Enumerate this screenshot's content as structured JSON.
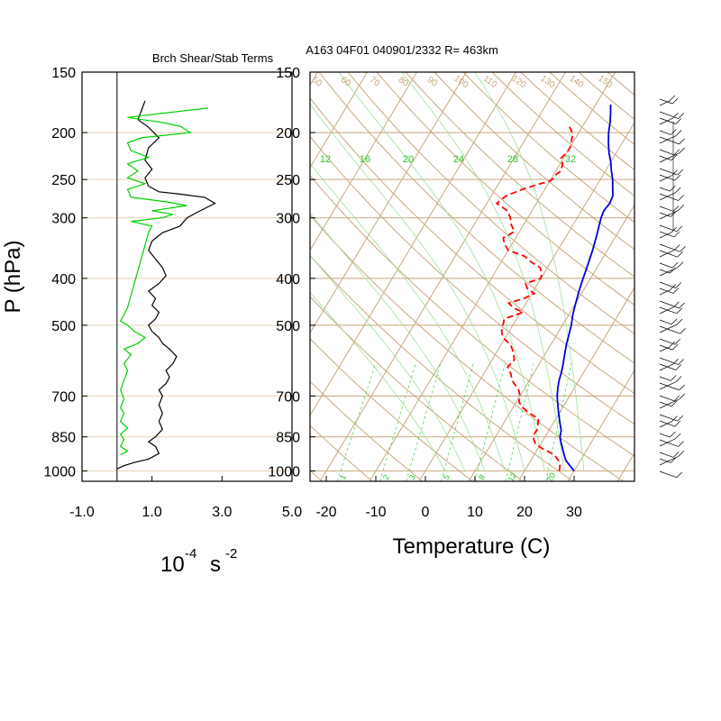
{
  "figure": {
    "left_title": "Brch Shear/Stab Terms",
    "right_title": "A163 04F01 040901/2332 R= 463km",
    "pressure_axis_label": "P (hPa)",
    "left_xlabel_base": "10",
    "left_xlabel_exp": "-4",
    "left_xlabel_unit": "s",
    "left_xlabel_unit_exp": "-2",
    "right_xlabel": "Temperature (C)"
  },
  "chart_data": [
    {
      "type": "line",
      "panel": "left",
      "title": "Brch Shear/Stab Terms",
      "xlabel": "10^-4 s^-2",
      "ylabel": "P (hPa)",
      "xlim": [
        -1.0,
        5.0
      ],
      "ylim": [
        1050,
        150
      ],
      "y_scale": "log",
      "x_ticks": [
        "-1.0",
        "1.0",
        "3.0",
        "5.0"
      ],
      "x_tick_values": [
        -1.0,
        1.0,
        3.0,
        5.0
      ],
      "y_ticks": [
        150,
        200,
        250,
        300,
        400,
        500,
        700,
        850,
        1000
      ],
      "series": [
        {
          "color": "#000000",
          "points": [
            [
              0.0,
              990
            ],
            [
              0.2,
              975
            ],
            [
              0.5,
              960
            ],
            [
              0.9,
              945
            ],
            [
              1.2,
              920
            ],
            [
              1.1,
              890
            ],
            [
              0.9,
              870
            ],
            [
              1.1,
              850
            ],
            [
              1.3,
              820
            ],
            [
              1.2,
              790
            ],
            [
              1.3,
              760
            ],
            [
              1.2,
              730
            ],
            [
              1.3,
              700
            ],
            [
              1.2,
              680
            ],
            [
              1.4,
              660
            ],
            [
              1.5,
              640
            ],
            [
              1.4,
              620
            ],
            [
              1.6,
              600
            ],
            [
              1.7,
              580
            ],
            [
              1.5,
              560
            ],
            [
              1.3,
              545
            ],
            [
              1.2,
              530
            ],
            [
              1.0,
              515
            ],
            [
              0.9,
              500
            ],
            [
              1.1,
              485
            ],
            [
              1.2,
              470
            ],
            [
              1.0,
              455
            ],
            [
              1.1,
              440
            ],
            [
              0.9,
              425
            ],
            [
              1.2,
              410
            ],
            [
              1.4,
              395
            ],
            [
              1.3,
              380
            ],
            [
              1.1,
              365
            ],
            [
              0.9,
              350
            ],
            [
              1.0,
              335
            ],
            [
              1.3,
              322
            ],
            [
              1.8,
              312
            ],
            [
              2.0,
              300
            ],
            [
              2.3,
              292
            ],
            [
              2.8,
              280
            ],
            [
              2.5,
              272
            ],
            [
              1.8,
              268
            ],
            [
              1.2,
              265
            ],
            [
              0.9,
              258
            ],
            [
              0.8,
              248
            ],
            [
              1.0,
              238
            ],
            [
              0.8,
              228
            ],
            [
              0.9,
              215
            ],
            [
              1.2,
              205
            ],
            [
              0.9,
              195
            ],
            [
              0.6,
              188
            ],
            [
              0.7,
              180
            ],
            [
              0.8,
              172
            ]
          ]
        },
        {
          "color": "#00d000",
          "points": [
            [
              0.1,
              925
            ],
            [
              0.3,
              910
            ],
            [
              0.1,
              890
            ],
            [
              0.2,
              860
            ],
            [
              0.1,
              840
            ],
            [
              0.3,
              815
            ],
            [
              0.1,
              790
            ],
            [
              0.2,
              760
            ],
            [
              0.1,
              740
            ],
            [
              0.2,
              710
            ],
            [
              0.1,
              680
            ],
            [
              0.2,
              650
            ],
            [
              0.3,
              620
            ],
            [
              0.2,
              600
            ],
            [
              0.4,
              575
            ],
            [
              0.2,
              560
            ],
            [
              0.6,
              545
            ],
            [
              0.8,
              530
            ],
            [
              0.5,
              515
            ],
            [
              0.3,
              500
            ],
            [
              0.1,
              490
            ],
            [
              0.2,
              475
            ],
            [
              0.3,
              460
            ],
            [
              0.9,
              322
            ],
            [
              1.0,
              312
            ],
            [
              0.4,
              305
            ],
            [
              1.3,
              300
            ],
            [
              1.6,
              295
            ],
            [
              1.0,
              290
            ],
            [
              2.0,
              283
            ],
            [
              1.4,
              278
            ],
            [
              0.4,
              272
            ],
            [
              0.3,
              262
            ],
            [
              0.8,
              255
            ],
            [
              0.3,
              248
            ],
            [
              0.6,
              240
            ],
            [
              0.3,
              232
            ],
            [
              0.9,
              225
            ],
            [
              0.4,
              218
            ],
            [
              0.3,
              210
            ],
            [
              0.7,
              205
            ],
            [
              2.1,
              200
            ],
            [
              1.8,
              194
            ],
            [
              1.2,
              190
            ],
            [
              0.7,
              188
            ],
            [
              0.3,
              186
            ],
            [
              2.6,
              178
            ]
          ]
        }
      ]
    },
    {
      "type": "line",
      "panel": "right",
      "title": "A163 04F01 040901/2332 R= 463km",
      "xlabel": "Temperature (C)",
      "ylabel": "P (hPa)",
      "xlim": [
        -23,
        42
      ],
      "ylim": [
        1050,
        150
      ],
      "y_scale": "log",
      "x_ticks": [
        -20,
        -10,
        0,
        10,
        20,
        30
      ],
      "y_ticks": [
        150,
        200,
        250,
        300,
        400,
        500,
        700,
        850,
        1000
      ],
      "isotherm_labels": [
        "-20",
        "-10",
        "0",
        "10",
        "20",
        "30"
      ],
      "mixing_ratio_upper_labels": [
        "12",
        "16",
        "20",
        "24",
        "28",
        "32"
      ],
      "mixing_ratio_lower_labels": [
        "1",
        "2",
        "3",
        "5",
        "8",
        "12",
        "20"
      ],
      "theta_labels": [
        "50",
        "60",
        "70",
        "80",
        "90",
        "100",
        "110",
        "120",
        "130",
        "140",
        "150"
      ],
      "series": [
        {
          "name": "temperature",
          "color": "#0000dd",
          "points": [
            [
              30.0,
              1000
            ],
            [
              28.5,
              975
            ],
            [
              27.0,
              950
            ],
            [
              26.0,
              925
            ],
            [
              25.0,
              900
            ],
            [
              24.0,
              875
            ],
            [
              23.0,
              850
            ],
            [
              22.5,
              825
            ],
            [
              21.5,
              800
            ],
            [
              20.5,
              775
            ],
            [
              19.5,
              750
            ],
            [
              18.5,
              725
            ],
            [
              17.5,
              700
            ],
            [
              16.7,
              675
            ],
            [
              16.0,
              650
            ],
            [
              15.5,
              625
            ],
            [
              14.8,
              600
            ],
            [
              14.0,
              575
            ],
            [
              13.2,
              550
            ],
            [
              12.5,
              525
            ],
            [
              11.8,
              500
            ],
            [
              10.8,
              475
            ],
            [
              10.0,
              450
            ],
            [
              9.2,
              425
            ],
            [
              8.5,
              400
            ],
            [
              7.8,
              375
            ],
            [
              7.0,
              350
            ],
            [
              6.0,
              325
            ],
            [
              4.8,
              300
            ],
            [
              4.5,
              290
            ],
            [
              4.8,
              280
            ],
            [
              4.5,
              270
            ],
            [
              3.5,
              260
            ],
            [
              2.5,
              250
            ],
            [
              1.2,
              240
            ],
            [
              0.0,
              230
            ],
            [
              -1.5,
              220
            ],
            [
              -2.8,
              210
            ],
            [
              -4.0,
              200
            ],
            [
              -5.0,
              190
            ],
            [
              -6.0,
              182
            ],
            [
              -7.0,
              175
            ]
          ]
        },
        {
          "name": "dewpoint",
          "color": "#ff0000",
          "dashed": true,
          "points": [
            [
              27.0,
              1000
            ],
            [
              26.5,
              975
            ],
            [
              25.5,
              950
            ],
            [
              24.0,
              925
            ],
            [
              21.0,
              900
            ],
            [
              19.0,
              880
            ],
            [
              18.0,
              860
            ],
            [
              17.5,
              840
            ],
            [
              17.5,
              820
            ],
            [
              17.0,
              800
            ],
            [
              16.5,
              780
            ],
            [
              14.0,
              760
            ],
            [
              12.0,
              740
            ],
            [
              10.5,
              720
            ],
            [
              10.0,
              700
            ],
            [
              9.0,
              680
            ],
            [
              6.5,
              650
            ],
            [
              5.5,
              630
            ],
            [
              4.0,
              610
            ],
            [
              4.5,
              590
            ],
            [
              3.5,
              570
            ],
            [
              2.0,
              550
            ],
            [
              -0.5,
              530
            ],
            [
              -1.5,
              515
            ],
            [
              -2.0,
              500
            ],
            [
              -2.5,
              485
            ],
            [
              0.5,
              470
            ],
            [
              -2.0,
              460
            ],
            [
              -3.5,
              450
            ],
            [
              -1.0,
              440
            ],
            [
              0.5,
              430
            ],
            [
              -1.5,
              420
            ],
            [
              -2.5,
              410
            ],
            [
              0.0,
              400
            ],
            [
              -0.5,
              390
            ],
            [
              -1.5,
              380
            ],
            [
              -4.0,
              370
            ],
            [
              -6.0,
              360
            ],
            [
              -10.0,
              350
            ],
            [
              -11.5,
              340
            ],
            [
              -12.5,
              330
            ],
            [
              -11.0,
              320
            ],
            [
              -12.5,
              310
            ],
            [
              -13.5,
              300
            ],
            [
              -15.0,
              290
            ],
            [
              -18.0,
              280
            ],
            [
              -17.0,
              270
            ],
            [
              -14.5,
              262
            ],
            [
              -12.0,
              256
            ],
            [
              -10.0,
              252
            ],
            [
              -9.5,
              248
            ],
            [
              -9.5,
              244
            ],
            [
              -9.0,
              240
            ],
            [
              -9.5,
              232
            ],
            [
              -10.5,
              226
            ],
            [
              -10.0,
              220
            ],
            [
              -10.0,
              214
            ],
            [
              -10.5,
              208
            ],
            [
              -11.0,
              202
            ],
            [
              -12.0,
              197
            ],
            [
              -13.0,
              193
            ]
          ]
        }
      ]
    }
  ]
}
